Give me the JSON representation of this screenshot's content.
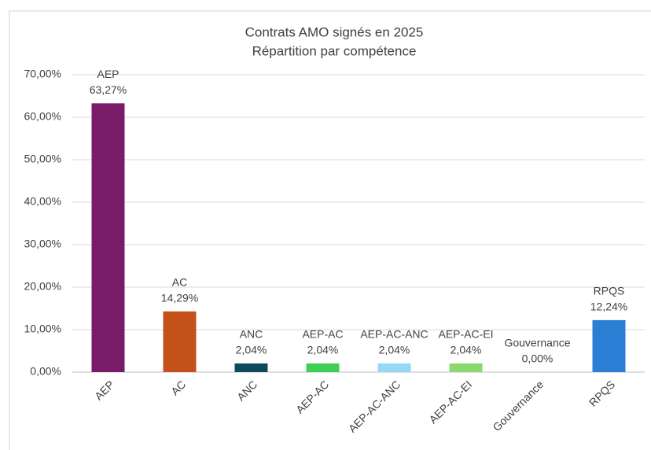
{
  "chart_data": {
    "type": "bar",
    "title": "Contrats AMO signés en 2025",
    "subtitle": "Répartition par compétence",
    "categories": [
      "AEP",
      "AC",
      "ANC",
      "AEP-AC",
      "AEP-AC-ANC",
      "AEP-AC-EI",
      "Gouvernance",
      "RPQS"
    ],
    "values": [
      63.27,
      14.29,
      2.04,
      2.04,
      2.04,
      2.04,
      0,
      12.24
    ],
    "value_labels": [
      "63,27%",
      "14,29%",
      "2,04%",
      "2,04%",
      "2,04%",
      "2,04%",
      "0,00%",
      "12,24%"
    ],
    "colors": [
      "#7b1c6a",
      "#c5511a",
      "#0e4a5e",
      "#3fcf55",
      "#93d8f5",
      "#8ad86e",
      "#888888",
      "#2a7fd4"
    ],
    "ylim": [
      0,
      70
    ],
    "yticks": [
      {
        "value": 0,
        "label": "0,00%"
      },
      {
        "value": 10,
        "label": "10,00%"
      },
      {
        "value": 20,
        "label": "20,00%"
      },
      {
        "value": 30,
        "label": "30,00%"
      },
      {
        "value": 40,
        "label": "40,00%"
      },
      {
        "value": 50,
        "label": "50,00%"
      },
      {
        "value": 60,
        "label": "60,00%"
      },
      {
        "value": 70,
        "label": "70,00%"
      }
    ],
    "grid": true
  }
}
